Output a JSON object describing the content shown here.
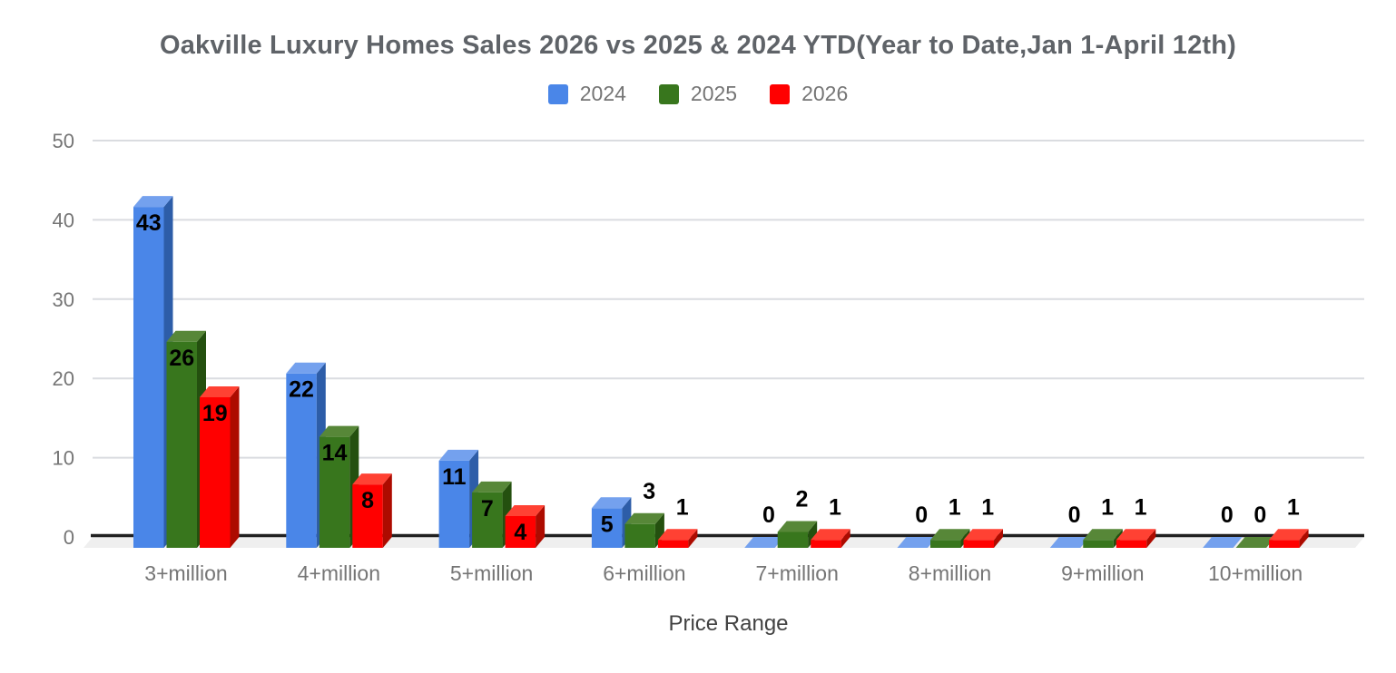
{
  "chart_data": {
    "type": "bar",
    "variant": "3d-column-grouped",
    "title": "Oakville Luxury Homes Sales 2026 vs 2025 & 2024 YTD(Year to Date,Jan 1-April 12th)",
    "xlabel": "Price Range",
    "ylabel": "",
    "categories": [
      "3+million",
      "4+million",
      "5+million",
      "6+million",
      "7+million",
      "8+million",
      "9+million",
      "10+million"
    ],
    "series": [
      {
        "name": "2024",
        "color": "#4a86e8",
        "shade_top": "#74a1ee",
        "shade_side": "#2d5da8",
        "values": [
          43,
          22,
          11,
          5,
          0,
          0,
          0,
          0
        ]
      },
      {
        "name": "2025",
        "color": "#38761d",
        "shade_top": "#578738",
        "shade_side": "#24500f",
        "values": [
          26,
          14,
          7,
          3,
          2,
          1,
          1,
          0
        ]
      },
      {
        "name": "2026",
        "color": "#ff0000",
        "shade_top": "#ff4133",
        "shade_side": "#ad0b00",
        "values": [
          19,
          8,
          4,
          1,
          1,
          1,
          1,
          1
        ]
      }
    ],
    "ylim": [
      0,
      50
    ],
    "y_ticks": [
      0,
      10,
      20,
      30,
      40,
      50
    ],
    "grid": true,
    "legend_position": "top",
    "value_labels_shown": true
  },
  "style_colors": {
    "title_text": "#5f6368",
    "axis_tick_text": "#757575",
    "category_text": "#757575",
    "xlabel_text": "#424242",
    "value_label_text": "#000000",
    "gridline": "#dadce0",
    "baseline": "#212121",
    "floor": "#efefef",
    "background": "#ffffff"
  }
}
